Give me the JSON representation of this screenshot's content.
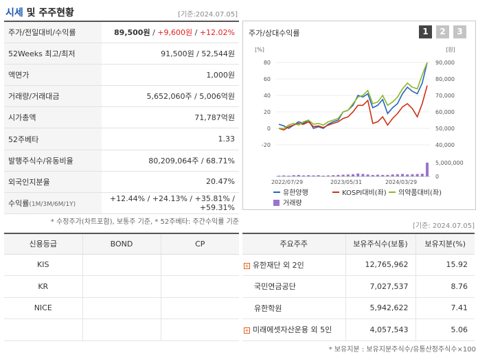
{
  "market": {
    "title_main": "시세",
    "title_rest": " 및 주주현황",
    "date": "[기준:2024.07.05]",
    "rows": [
      {
        "key": "주가/전일대비/수익률",
        "price": "89,500원",
        "change": "+9,600원",
        "rate": "+12.02%"
      },
      {
        "key": "52Weeks 최고/최저",
        "value": "91,500원 / 52,544원"
      },
      {
        "key": "액면가",
        "value": "1,000원"
      },
      {
        "key": "거래량/거래대금",
        "value": "5,652,060주 / 5,006억원"
      },
      {
        "key": "시가총액",
        "value": "71,787억원"
      },
      {
        "key": "52주베타",
        "value": "1.33"
      },
      {
        "key": "발행주식수/유동비율",
        "value": "80,209,064주 / 68.71%"
      },
      {
        "key": "외국인지분율",
        "value": "20.47%"
      },
      {
        "key": "수익률",
        "key_suffix": "(1M/3M/6M/1Y)",
        "value": "+12.44% / +24.13% / +35.81% / +59.31%"
      }
    ],
    "note": "* 수정주가(차트포함), 보통주 기준, * 52주베타: 주간수익률 기준"
  },
  "chart": {
    "title": "주가/상대수익률",
    "buttons": [
      "1",
      "2",
      "3"
    ],
    "active_button": "1",
    "units_left": "[%]",
    "units_right": "[원]"
  },
  "chart_data": {
    "type": "line",
    "x_tick_labels": [
      "2022/07/29",
      "2023/05/31",
      "2024/03/29"
    ],
    "y_left_ticks": [
      "80",
      "60",
      "40",
      "20",
      "0",
      "-20"
    ],
    "y_left_range": [
      -20,
      80
    ],
    "y_right_ticks": [
      "90,000",
      "80,000",
      "70,000",
      "60,000",
      "50,000",
      "40,000"
    ],
    "y_right_range": [
      40000,
      90000
    ],
    "volume_ticks": [
      "5,000,000",
      "0"
    ],
    "series": [
      {
        "name": "유한양행",
        "color": "#2462c4",
        "values": [
          5,
          3,
          0,
          4,
          8,
          6,
          10,
          0,
          2,
          0,
          5,
          8,
          10,
          20,
          22,
          28,
          40,
          38,
          42,
          25,
          28,
          35,
          18,
          25,
          30,
          42,
          50,
          45,
          42,
          55,
          80
        ]
      },
      {
        "name": "KOSPI대비(좌)",
        "color": "#cc3010",
        "values": [
          0,
          -2,
          2,
          4,
          6,
          5,
          8,
          2,
          3,
          1,
          4,
          6,
          8,
          12,
          14,
          20,
          28,
          28,
          34,
          6,
          8,
          14,
          4,
          12,
          18,
          26,
          30,
          24,
          14,
          30,
          52
        ]
      },
      {
        "name": "의약품대비(좌)",
        "color": "#8ab822",
        "values": [
          0,
          0,
          4,
          6,
          4,
          8,
          10,
          5,
          6,
          4,
          8,
          10,
          12,
          20,
          22,
          30,
          38,
          40,
          46,
          30,
          32,
          40,
          28,
          32,
          38,
          48,
          55,
          50,
          48,
          65,
          80
        ]
      },
      {
        "name": "거래량",
        "color": "#9a74cc",
        "type": "bar",
        "values": [
          0.3,
          0.4,
          0.3,
          0.5,
          0.6,
          0.4,
          0.5,
          0.4,
          0.5,
          0.3,
          0.4,
          0.5,
          0.6,
          0.7,
          0.8,
          0.9,
          1.2,
          1.0,
          0.8,
          0.6,
          0.7,
          0.6,
          0.6,
          0.8,
          0.9,
          1.0,
          0.8,
          0.9,
          1.0,
          1.1,
          5.6
        ]
      }
    ]
  },
  "credit": {
    "headers": [
      "신용등급",
      "BOND",
      "CP"
    ],
    "rows": [
      "KIS",
      "KR",
      "NICE"
    ]
  },
  "holders": {
    "date": "[기준: 2024.07.05]",
    "headers": [
      "주요주주",
      "보유주식수(보통)",
      "보유지분(%)"
    ],
    "rows": [
      {
        "name": "유한재단 외 2인",
        "shares": "12,765,962",
        "pct": "15.92",
        "expand": true
      },
      {
        "name": "국민연금공단",
        "shares": "7,027,537",
        "pct": "8.76",
        "expand": false
      },
      {
        "name": "유한학원",
        "shares": "5,942,622",
        "pct": "7.41",
        "expand": false
      },
      {
        "name": "미래에셋자산운용 외 5인",
        "shares": "4,057,543",
        "pct": "5.06",
        "expand": true
      }
    ],
    "note": "* 보유지분 : 보유지분주식수/유통산정주식수×100"
  }
}
